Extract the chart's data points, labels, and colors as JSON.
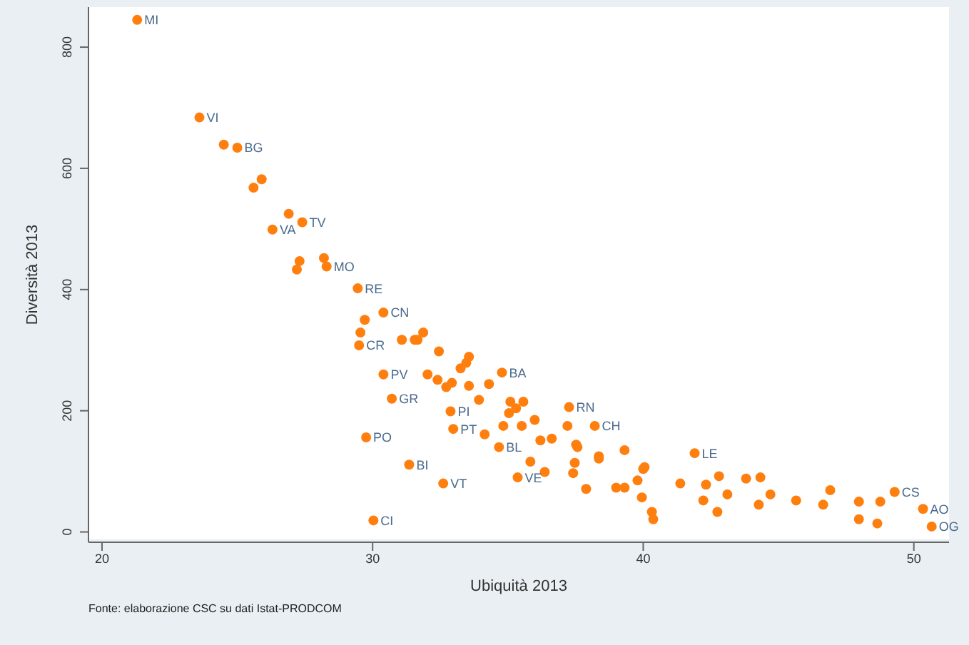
{
  "chart_data": {
    "type": "scatter",
    "xlabel": "Ubiquità 2013",
    "ylabel": "Diversità 2013",
    "xlim": [
      19.5,
      51.3
    ],
    "xticks": [
      20,
      30,
      40,
      50
    ],
    "ylim": [
      -17,
      866
    ],
    "yticks": [
      0,
      200,
      400,
      600,
      800
    ],
    "grid": false,
    "marker": "circle",
    "series": [
      {
        "color": "#ff7f0e",
        "x": [
          21.3,
          23.6,
          24.5,
          25.0,
          25.9,
          25.6,
          26.9,
          27.4,
          26.3,
          27.3,
          27.2,
          28.2,
          28.3,
          29.45,
          30.4,
          29.71,
          29.55,
          29.5,
          31.08,
          31.56,
          31.87,
          31.66,
          32.45,
          33.56,
          33.46,
          33.25,
          34.78,
          32.03,
          32.4,
          32.72,
          32.93,
          33.56,
          34.3,
          30.4,
          30.71,
          32.88,
          32.98,
          29.76,
          31.35,
          32.61,
          30.03,
          33.93,
          35.09,
          35.3,
          35.57,
          35.04,
          37.26,
          34.14,
          34.83,
          34.67,
          35.51,
          35.99,
          36.2,
          36.62,
          37.2,
          37.57,
          38.21,
          35.83,
          35.36,
          36.36,
          37.47,
          37.41,
          38.36,
          39.31,
          37.89,
          39.0,
          39.31,
          40.0,
          39.95,
          40.32,
          40.37,
          41.9,
          37.52,
          38.36,
          40.05,
          39.79,
          41.37,
          42.8,
          42.32,
          42.22,
          42.74,
          43.11,
          43.8,
          44.33,
          44.7,
          44.27,
          45.65,
          46.65,
          46.91,
          47.97,
          47.97,
          48.65,
          48.76,
          49.29,
          50.34,
          50.66
        ],
        "values": [
          845,
          684,
          639,
          634,
          582,
          568,
          525,
          511,
          499,
          447,
          433,
          452,
          438,
          402,
          362,
          350,
          329,
          308,
          317,
          317,
          329,
          317,
          298,
          289,
          279,
          270,
          263,
          260,
          251,
          239,
          246,
          241,
          244,
          260,
          220,
          199,
          170,
          156,
          111,
          80,
          19,
          218,
          215,
          204,
          215,
          196,
          206,
          161,
          175,
          140,
          175,
          185,
          151,
          154,
          175,
          140,
          175,
          116,
          90,
          99,
          114,
          97,
          121,
          135,
          71,
          73,
          73,
          104,
          57,
          33,
          21,
          130,
          144,
          125,
          107,
          85,
          80,
          92,
          78,
          52,
          33,
          62,
          88,
          90,
          62,
          45,
          52,
          45,
          69,
          50,
          21,
          14,
          50,
          66,
          38,
          9
        ]
      }
    ],
    "annotations": [
      {
        "text": "MI",
        "x": 21.3,
        "y": 845
      },
      {
        "text": "VI",
        "x": 23.6,
        "y": 684
      },
      {
        "text": "BG",
        "x": 25.0,
        "y": 634
      },
      {
        "text": "TV",
        "x": 27.4,
        "y": 511
      },
      {
        "text": "VA",
        "x": 26.3,
        "y": 499
      },
      {
        "text": "MO",
        "x": 28.3,
        "y": 438
      },
      {
        "text": "RE",
        "x": 29.45,
        "y": 402
      },
      {
        "text": "CN",
        "x": 30.4,
        "y": 362
      },
      {
        "text": "CR",
        "x": 29.5,
        "y": 308
      },
      {
        "text": "BA",
        "x": 34.78,
        "y": 263
      },
      {
        "text": "PV",
        "x": 30.4,
        "y": 260
      },
      {
        "text": "GR",
        "x": 30.71,
        "y": 220
      },
      {
        "text": "PI",
        "x": 32.88,
        "y": 199
      },
      {
        "text": "PT",
        "x": 32.98,
        "y": 170
      },
      {
        "text": "PO",
        "x": 29.76,
        "y": 156
      },
      {
        "text": "BI",
        "x": 31.35,
        "y": 111
      },
      {
        "text": "VT",
        "x": 32.61,
        "y": 80
      },
      {
        "text": "CI",
        "x": 30.03,
        "y": 19
      },
      {
        "text": "RN",
        "x": 37.26,
        "y": 206
      },
      {
        "text": "BL",
        "x": 34.67,
        "y": 140
      },
      {
        "text": "CH",
        "x": 38.21,
        "y": 175
      },
      {
        "text": "VE",
        "x": 35.36,
        "y": 90
      },
      {
        "text": "LE",
        "x": 41.9,
        "y": 130
      },
      {
        "text": "CS",
        "x": 49.29,
        "y": 66
      },
      {
        "text": "AO",
        "x": 50.34,
        "y": 38
      },
      {
        "text": "OG",
        "x": 50.66,
        "y": 9
      },
      "Fonte: elaborazione CSC su dati Istat-PRODCOM"
    ]
  }
}
